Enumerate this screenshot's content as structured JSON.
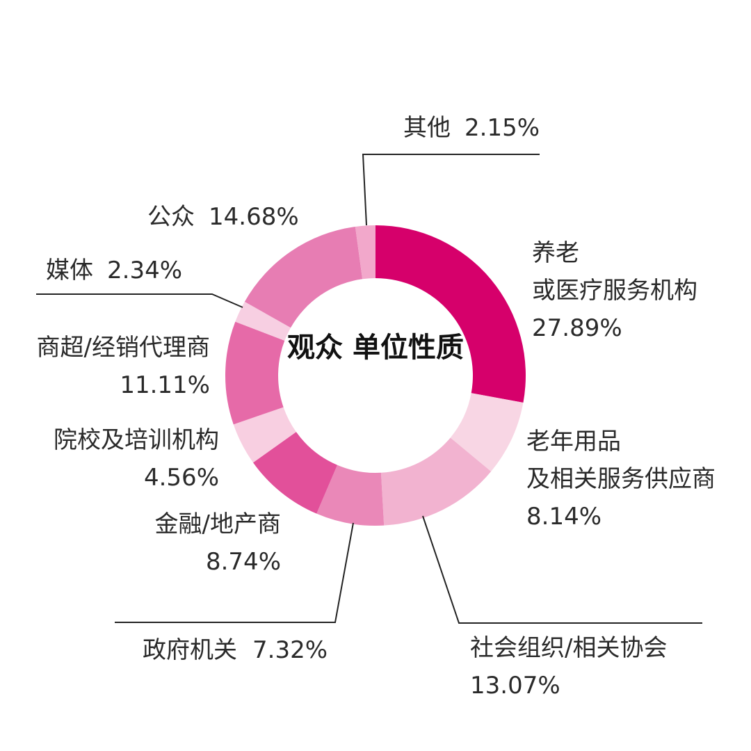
{
  "chart_data": {
    "type": "pie",
    "title": "观众\n单位性质",
    "title_lines": [
      "观众",
      "单位性质"
    ],
    "slices": [
      {
        "label": "养老或医疗服务机构",
        "label_lines": [
          "养老",
          "或医疗服务机构"
        ],
        "value": 27.89,
        "pct_text": "27.89%",
        "color": "#d6006b"
      },
      {
        "label": "老年用品及相关服务供应商",
        "label_lines": [
          "老年用品",
          "及相关服务供应商"
        ],
        "value": 8.14,
        "pct_text": "8.14%",
        "color": "#f8d6e4"
      },
      {
        "label": "社会组织/相关协会",
        "label_lines": [
          "社会组织/相关协会"
        ],
        "value": 13.07,
        "pct_text": "13.07%",
        "color": "#f2b3d0"
      },
      {
        "label": "政府机关",
        "label_lines": [
          "政府机关"
        ],
        "value": 7.32,
        "pct_text": "7.32%",
        "color": "#ea88b8"
      },
      {
        "label": "金融/地产商",
        "label_lines": [
          "金融/地产商"
        ],
        "value": 8.74,
        "pct_text": "8.74%",
        "color": "#e2509a"
      },
      {
        "label": "院校及培训机构",
        "label_lines": [
          "院校及培训机构"
        ],
        "value": 4.56,
        "pct_text": "4.56%",
        "color": "#f8cfe1"
      },
      {
        "label": "商超/经销代理商",
        "label_lines": [
          "商超/经销代理商"
        ],
        "value": 11.11,
        "pct_text": "11.11%",
        "color": "#e66aa8"
      },
      {
        "label": "媒体",
        "label_lines": [
          "媒体"
        ],
        "value": 2.34,
        "pct_text": "2.34%",
        "color": "#f7cfe2"
      },
      {
        "label": "公众",
        "label_lines": [
          "公众"
        ],
        "value": 14.68,
        "pct_text": "14.68%",
        "color": "#e77db3"
      },
      {
        "label": "其他",
        "label_lines": [
          "其他"
        ],
        "value": 2.15,
        "pct_text": "2.15%",
        "color": "#f2a8cb"
      }
    ]
  }
}
